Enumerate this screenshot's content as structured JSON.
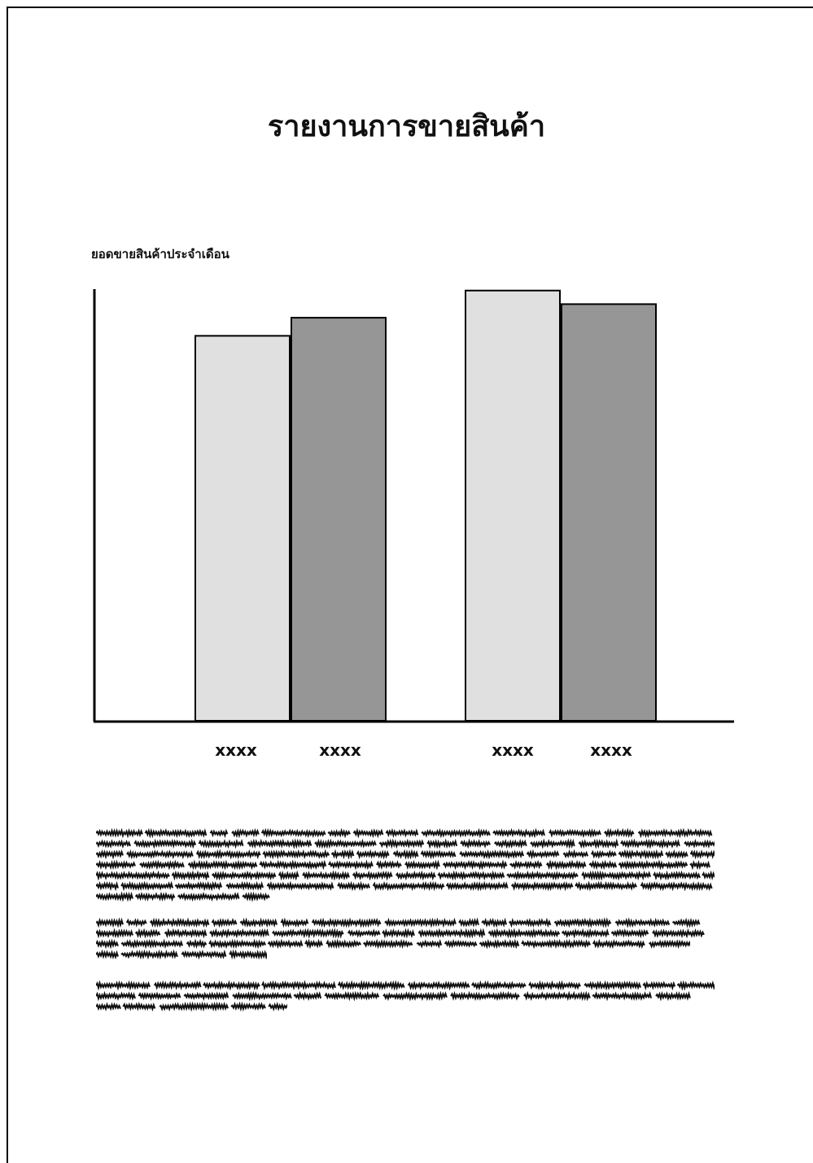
{
  "title": "รายงานการขายสินค้า",
  "chart_data": {
    "type": "bar",
    "title": "ยอดขายสินค้าประจำเดือน",
    "categories": [
      "xxxx",
      "xxxx",
      "xxxx",
      "xxxx"
    ],
    "values": [
      85,
      89,
      95,
      92
    ],
    "bar_colors": [
      "#e0e0e0",
      "#969696",
      "#e0e0e0",
      "#969696"
    ],
    "ylim": [
      0,
      100
    ],
    "grid": false,
    "xlabel": "",
    "ylabel": ""
  },
  "colors": {
    "light_bar": "#e0e0e0",
    "dark_bar": "#969696",
    "axis": "#000000"
  }
}
